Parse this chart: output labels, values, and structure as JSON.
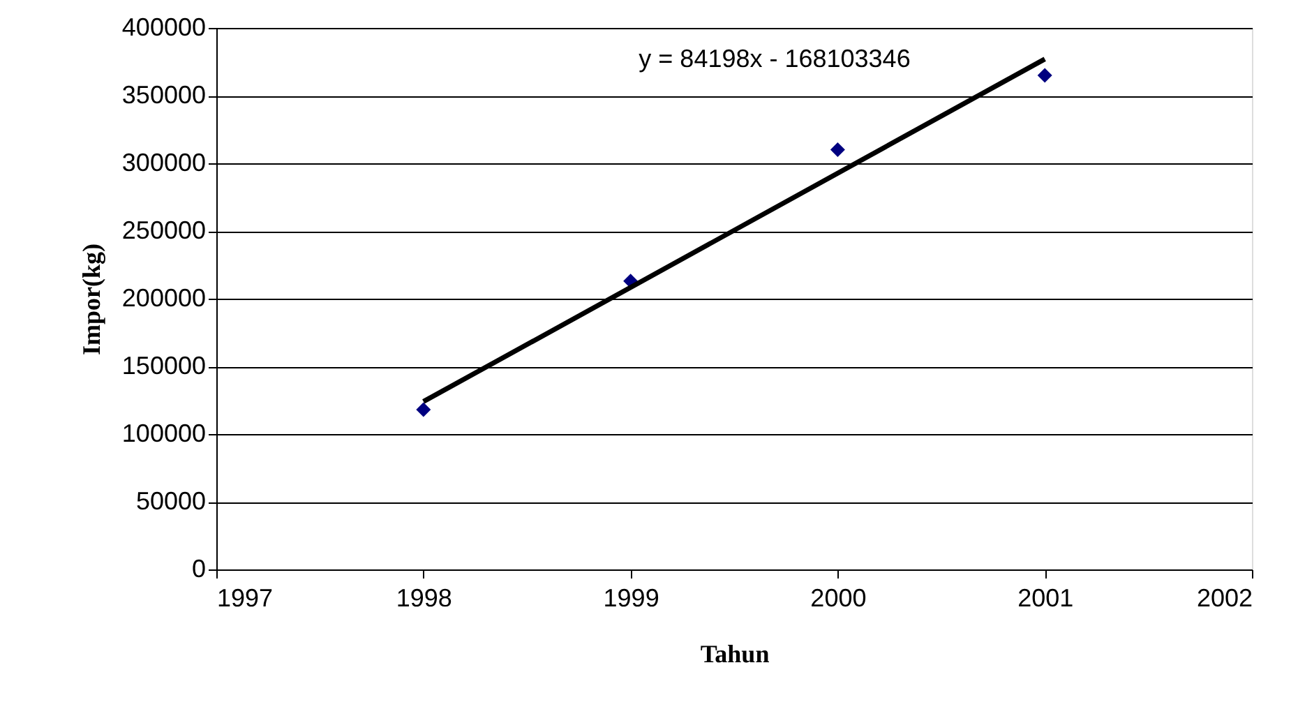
{
  "chart_data": {
    "type": "scatter",
    "xlabel": "Tahun",
    "ylabel": "Impor(kg)",
    "x": [
      1998,
      1999,
      2000,
      2001
    ],
    "series": [
      {
        "color": "#000080",
        "values": [
          118000,
          213000,
          310000,
          365000
        ]
      },
      {
        "type": "line",
        "color": "#000000",
        "marker": "none",
        "x": [
          1998,
          2001
        ],
        "values": [
          124000,
          377000
        ]
      }
    ],
    "xlim": [
      1997,
      2002
    ],
    "xticks": [
      1997,
      1998,
      1999,
      2000,
      2001,
      2002
    ],
    "ylim": [
      0,
      400000
    ],
    "yticks": [
      0,
      50000,
      100000,
      150000,
      200000,
      250000,
      300000,
      350000,
      400000
    ],
    "grid": "y",
    "marker": "diamond",
    "line_style": "solid",
    "annotations": [
      "y = 84198x - 168103346"
    ]
  }
}
